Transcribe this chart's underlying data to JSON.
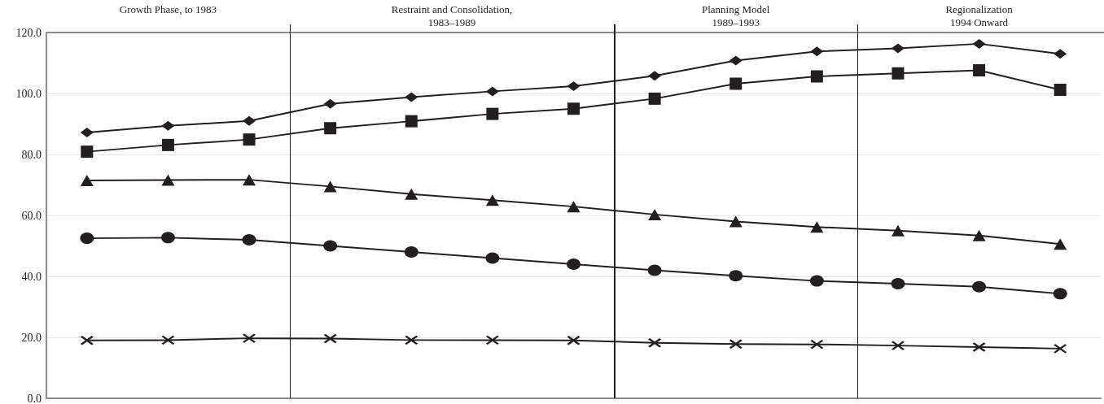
{
  "chart_data": {
    "type": "line",
    "categories": [
      null,
      null,
      null,
      null,
      null,
      null,
      null,
      null,
      null,
      null,
      null,
      null,
      null
    ],
    "ylim": [
      0,
      120
    ],
    "yticks": [
      {
        "value": 0,
        "label": "0.0"
      },
      {
        "value": 20,
        "label": "20.0"
      },
      {
        "value": 40,
        "label": "40.0"
      },
      {
        "value": 60,
        "label": "60.0"
      },
      {
        "value": 80,
        "label": "80.0"
      },
      {
        "value": 100,
        "label": "100.0"
      },
      {
        "value": 120,
        "label": "120.0"
      }
    ],
    "tick_labels": "y",
    "grid": "y",
    "series": [
      {
        "color": "#231f20",
        "marker": "diamond",
        "values": [
          87.2,
          89.4,
          91.0,
          96.6,
          98.8,
          100.7,
          102.4,
          105.8,
          110.8,
          113.8,
          114.8,
          116.3,
          113.0
        ]
      },
      {
        "color": "#231f20",
        "marker": "square",
        "values": [
          80.9,
          83.1,
          84.9,
          88.6,
          90.9,
          93.3,
          95.0,
          98.3,
          103.2,
          105.6,
          106.6,
          107.6,
          101.2
        ]
      },
      {
        "color": "#231f20",
        "marker": "triangle",
        "values": [
          71.5,
          71.6,
          71.7,
          69.5,
          67.0,
          65.0,
          62.9,
          60.3,
          58.0,
          56.2,
          55.0,
          53.4,
          50.6
        ]
      },
      {
        "color": "#231f20",
        "marker": "circle",
        "values": [
          52.5,
          52.7,
          52.0,
          50.0,
          48.0,
          46.0,
          44.0,
          42.0,
          40.2,
          38.5,
          37.6,
          36.6,
          34.3
        ]
      },
      {
        "color": "#231f20",
        "marker": "cross",
        "values": [
          19.0,
          19.1,
          19.7,
          19.6,
          19.1,
          19.1,
          19.0,
          18.2,
          17.8,
          17.7,
          17.3,
          16.8,
          16.3
        ]
      }
    ],
    "annotations": [
      "Growth Phase, to 1983",
      "Restraint and Consolidation,\n1983–1989",
      "Planning Model\n1989–1993",
      "Regionalization\n1994 Onward"
    ]
  }
}
